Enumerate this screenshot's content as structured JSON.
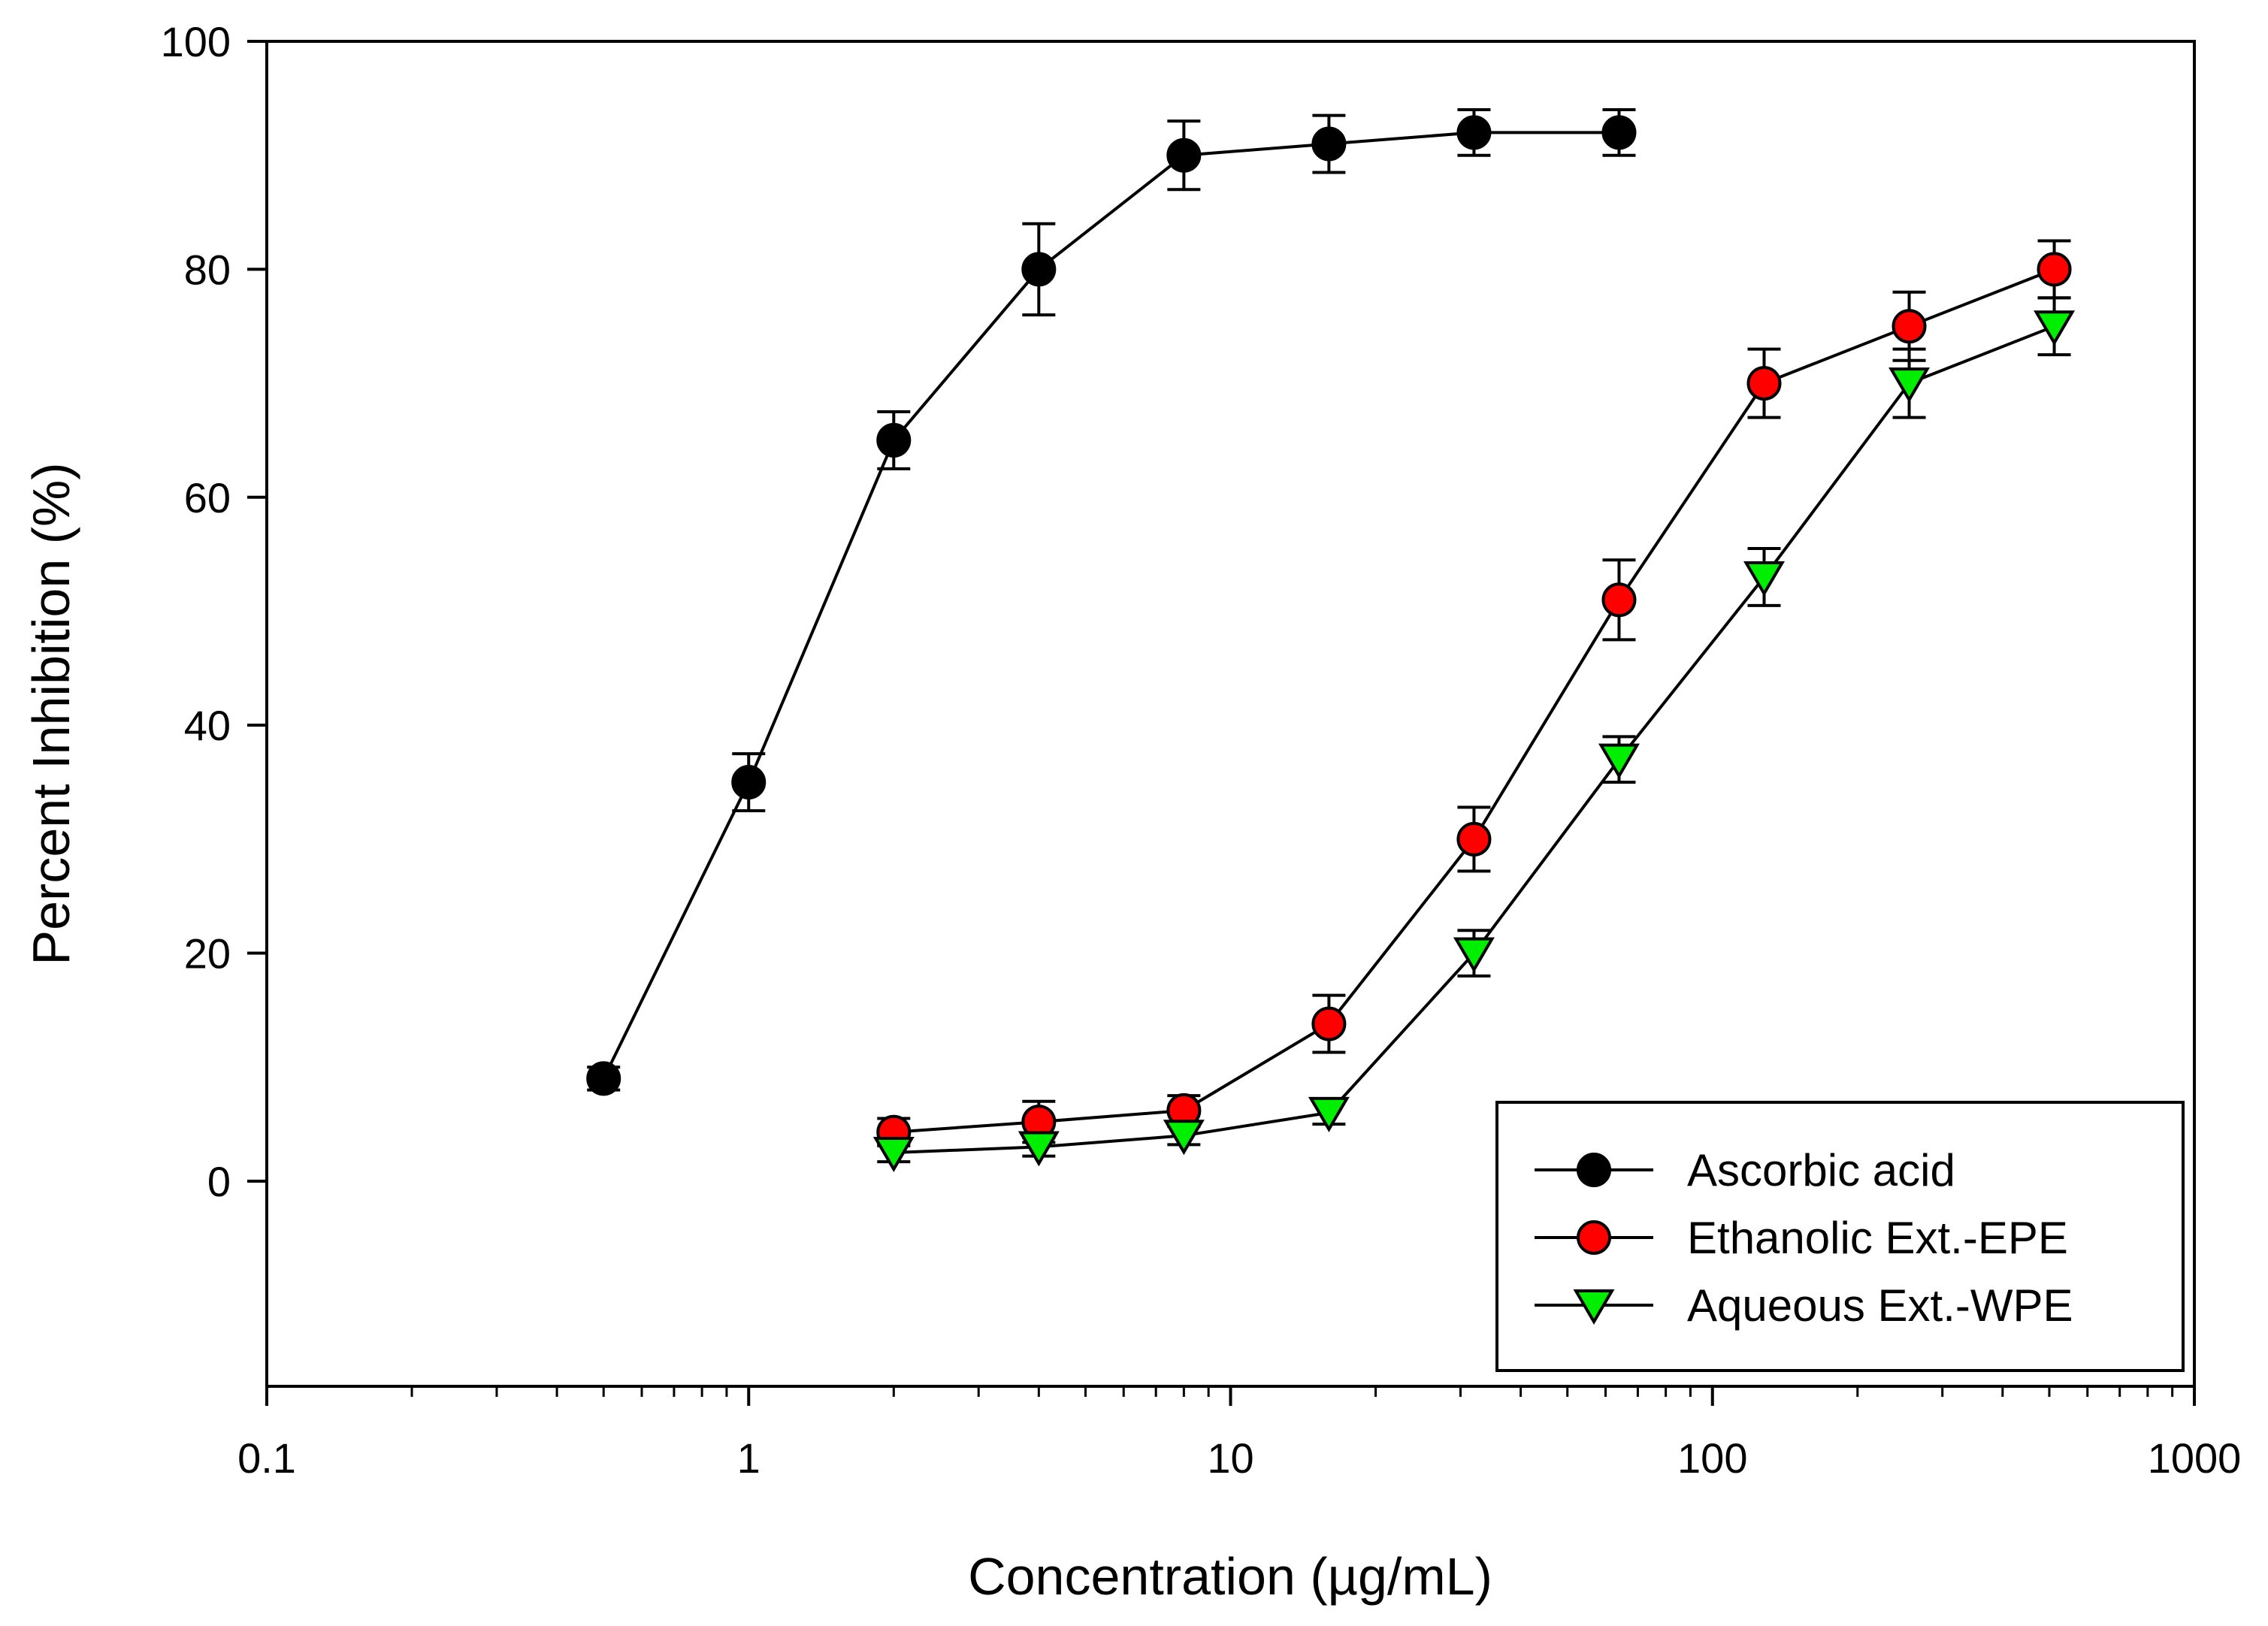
{
  "chart_data": {
    "type": "line",
    "xscale": "log",
    "xlabel": "Concentration (µg/mL)",
    "ylabel": "Percent Inhibition (%)",
    "xlim": [
      0.1,
      1000
    ],
    "ylim": [
      -18,
      100
    ],
    "xticks": [
      0.1,
      1,
      10,
      100,
      1000
    ],
    "xtick_labels": [
      "0.1",
      "1",
      "10",
      "100",
      "1000"
    ],
    "yticks": [
      0,
      20,
      40,
      60,
      80,
      100
    ],
    "ytick_labels": [
      "0",
      "20",
      "40",
      "60",
      "80",
      "100"
    ],
    "legend_position": "bottom-right",
    "series": [
      {
        "name": "Ascorbic acid",
        "marker": "circle",
        "color": "#000000",
        "x": [
          0.5,
          1,
          2,
          4,
          8,
          16,
          32,
          64
        ],
        "y": [
          9,
          35,
          65,
          80,
          90,
          91,
          92,
          92
        ],
        "err": [
          1.0,
          2.5,
          2.5,
          4.0,
          3.0,
          2.5,
          2.0,
          2.0
        ]
      },
      {
        "name": "Ethanolic Ext.-EPE",
        "marker": "circle",
        "color": "#ff0000",
        "x": [
          2,
          4,
          8,
          16,
          32,
          64,
          128,
          256,
          512
        ],
        "y": [
          4.3,
          5.2,
          6.2,
          13.8,
          30,
          51,
          70,
          75,
          80
        ],
        "err": [
          1.2,
          1.8,
          1.3,
          2.5,
          2.8,
          3.5,
          3.0,
          3.0,
          2.5
        ]
      },
      {
        "name": "Aqueous Ext.-WPE",
        "marker": "triangle-down",
        "color": "#00ee00",
        "x": [
          2,
          4,
          8,
          16,
          32,
          64,
          128,
          256,
          512
        ],
        "y": [
          2.5,
          3.0,
          4.0,
          6.0,
          20,
          37,
          53,
          70,
          75
        ],
        "err": [
          0.8,
          0.8,
          0.8,
          1.0,
          2.0,
          2.0,
          2.5,
          3.0,
          2.5
        ]
      }
    ]
  }
}
